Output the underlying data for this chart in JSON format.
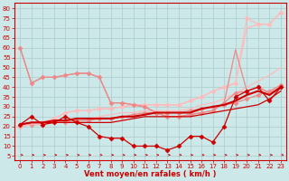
{
  "background_color": "#cce8e8",
  "grid_color": "#aacccc",
  "x_values": [
    0,
    1,
    2,
    3,
    4,
    5,
    6,
    7,
    8,
    9,
    10,
    11,
    12,
    13,
    14,
    15,
    16,
    17,
    18,
    19,
    20,
    21,
    22,
    23
  ],
  "xlabel": "Vent moyen/en rafales ( km/h )",
  "xlabel_color": "#cc0000",
  "yticks": [
    5,
    10,
    15,
    20,
    25,
    30,
    35,
    40,
    45,
    50,
    55,
    60,
    65,
    70,
    75,
    80
  ],
  "ylim": [
    3,
    83
  ],
  "xlim": [
    -0.5,
    23.5
  ],
  "lines": [
    {
      "y": [
        20,
        21,
        21,
        22,
        22,
        23,
        23,
        24,
        24,
        25,
        26,
        27,
        27,
        27,
        27,
        28,
        29,
        30,
        31,
        32,
        34,
        36,
        38,
        41
      ],
      "color": "#ee8888",
      "marker": null,
      "linewidth": 0.9
    },
    {
      "y": [
        20,
        21,
        21,
        22,
        22,
        23,
        23,
        24,
        24,
        25,
        26,
        27,
        27,
        27,
        27,
        28,
        29,
        30,
        31,
        32,
        34,
        36,
        38,
        41
      ],
      "color": "#ee8888",
      "marker": "D",
      "markersize": 2.5,
      "linewidth": 0
    },
    {
      "y": [
        20,
        21,
        21,
        22,
        23,
        24,
        24,
        25,
        26,
        27,
        27,
        28,
        28,
        28,
        28,
        29,
        31,
        32,
        34,
        37,
        40,
        43,
        46,
        50
      ],
      "color": "#ffbbbb",
      "marker": null,
      "linewidth": 0.9
    },
    {
      "y": [
        20,
        22,
        22,
        24,
        27,
        28,
        28,
        29,
        29,
        30,
        31,
        31,
        31,
        31,
        31,
        33,
        35,
        38,
        40,
        42,
        70,
        72,
        72,
        78
      ],
      "color": "#ffbbbb",
      "marker": null,
      "linewidth": 0.9
    },
    {
      "y": [
        20,
        22,
        22,
        24,
        27,
        28,
        28,
        29,
        29,
        30,
        31,
        31,
        31,
        31,
        31,
        33,
        35,
        38,
        40,
        42,
        75,
        72,
        72,
        78
      ],
      "color": "#ffbbbb",
      "marker": "D",
      "markersize": 2.5,
      "linewidth": 0.9
    },
    {
      "y": [
        60,
        42,
        45,
        45,
        46,
        47,
        47,
        45,
        32,
        32,
        31,
        30,
        27,
        25,
        25,
        26,
        27,
        28,
        32,
        59,
        38,
        40,
        37,
        40
      ],
      "color": "#ee8888",
      "marker": null,
      "linewidth": 0.9
    },
    {
      "y": [
        60,
        42,
        45,
        45,
        46,
        47,
        47,
        45,
        32,
        32,
        31,
        30,
        27,
        25,
        25,
        26,
        27,
        28,
        32,
        37,
        38,
        40,
        37,
        40
      ],
      "color": "#ee8888",
      "marker": "D",
      "markersize": 2.5,
      "linewidth": 0.9
    },
    {
      "y": [
        21,
        25,
        21,
        22,
        25,
        22,
        20,
        15,
        14,
        14,
        10,
        10,
        10,
        8,
        10,
        15,
        15,
        12,
        20,
        35,
        38,
        40,
        33,
        40
      ],
      "color": "#cc0000",
      "marker": "D",
      "markersize": 2.5,
      "linewidth": 0.9
    },
    {
      "y": [
        21,
        22,
        22,
        22,
        22,
        22,
        22,
        22,
        22,
        23,
        24,
        25,
        25,
        25,
        25,
        25,
        26,
        27,
        28,
        29,
        30,
        31,
        34,
        38
      ],
      "color": "#cc0000",
      "marker": null,
      "linewidth": 0.9
    },
    {
      "y": [
        21,
        22,
        22,
        23,
        23,
        24,
        24,
        24,
        24,
        25,
        25,
        26,
        27,
        27,
        27,
        27,
        29,
        30,
        31,
        33,
        36,
        38,
        36,
        40
      ],
      "color": "#cc0000",
      "marker": null,
      "linewidth": 1.5
    }
  ],
  "tick_label_color": "#cc0000",
  "tick_fontsize": 5.0,
  "xlabel_fontsize": 6.0
}
